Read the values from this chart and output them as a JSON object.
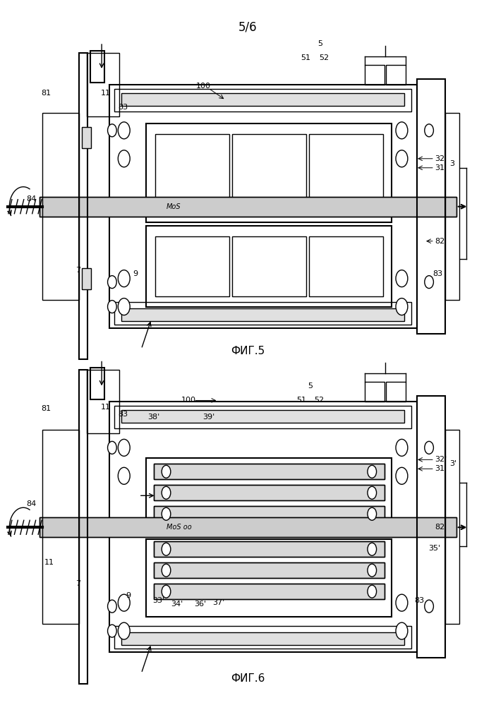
{
  "page_label": "5/6",
  "fig5_label": "ФИГ.5",
  "fig6_label": "ФИГ.6",
  "bg_color": "#ffffff",
  "line_color": "#000000"
}
